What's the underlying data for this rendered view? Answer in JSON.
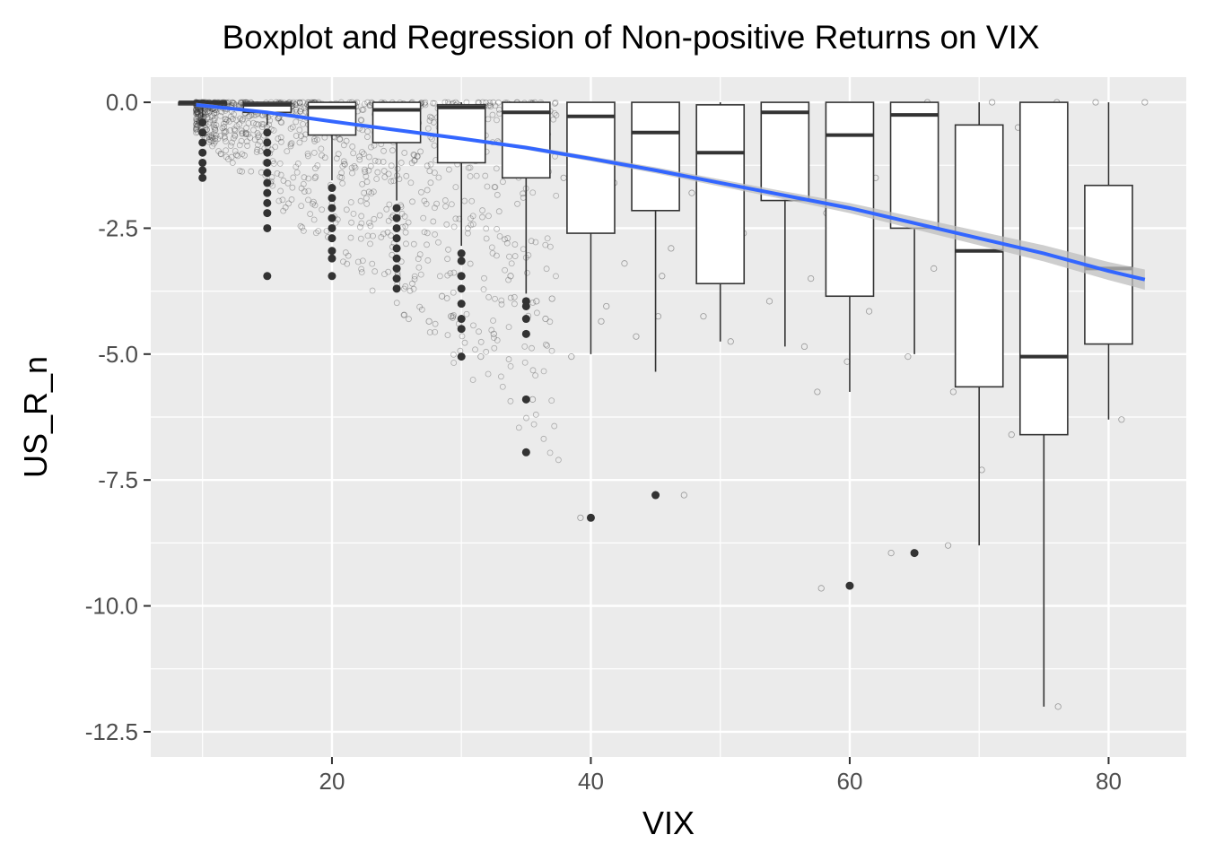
{
  "chart_data": {
    "type": "boxplot",
    "title": "Boxplot and Regression of Non-positive Returns on VIX",
    "xlabel": "VIX",
    "ylabel": "US_R_n",
    "xlim": [
      6,
      86
    ],
    "ylim": [
      -13.0,
      0.5
    ],
    "x_ticks": [
      20,
      40,
      60,
      80
    ],
    "y_ticks": [
      0.0,
      -2.5,
      -5.0,
      -7.5,
      -10.0,
      -12.5
    ],
    "y_tick_labels": [
      "0.0",
      "-2.5",
      "-5.0",
      "-7.5",
      "-10.0",
      "-12.5"
    ],
    "grid": true,
    "legend": "none",
    "colors": {
      "panel": "#ebebeb",
      "grid": "#ffffff",
      "box_fill": "#ffffff",
      "box_line": "#333333",
      "regression": "#3366ff",
      "confidence_band": "#bdbdbd",
      "points": "#333333"
    },
    "boxes": [
      {
        "x": 10,
        "low": -0.3,
        "q1": -0.05,
        "median": 0.0,
        "q3": 0.0,
        "high": 0.0,
        "outliers": [
          -0.4,
          -0.6,
          -0.8,
          -1.0,
          -1.2,
          -1.35,
          -1.5
        ]
      },
      {
        "x": 15,
        "low": -0.45,
        "q1": -0.2,
        "median": -0.05,
        "q3": 0.0,
        "high": 0.0,
        "outliers": [
          -0.6,
          -0.8,
          -1.0,
          -1.2,
          -1.4,
          -1.6,
          -1.8,
          -2.0,
          -2.2,
          -2.5,
          -3.45
        ]
      },
      {
        "x": 20,
        "low": -1.55,
        "q1": -0.65,
        "median": -0.1,
        "q3": 0.0,
        "high": 0.0,
        "outliers": [
          -1.7,
          -1.9,
          -2.1,
          -2.3,
          -2.5,
          -2.7,
          -2.95,
          -3.1,
          -3.45
        ]
      },
      {
        "x": 25,
        "low": -1.95,
        "q1": -0.8,
        "median": -0.15,
        "q3": 0.0,
        "high": 0.0,
        "outliers": [
          -2.1,
          -2.3,
          -2.5,
          -2.7,
          -2.9,
          -3.1,
          -3.3,
          -3.5,
          -3.7
        ]
      },
      {
        "x": 30,
        "low": -2.85,
        "q1": -1.2,
        "median": -0.1,
        "q3": -0.05,
        "high": 0.0,
        "outliers": [
          -3.0,
          -3.15,
          -3.45,
          -3.7,
          -4.0,
          -4.3,
          -4.5,
          -5.05
        ]
      },
      {
        "x": 35,
        "low": -3.8,
        "q1": -1.5,
        "median": -0.2,
        "q3": 0.0,
        "high": 0.0,
        "outliers": [
          -3.95,
          -4.05,
          -4.3,
          -4.6,
          -5.9,
          -6.95
        ]
      },
      {
        "x": 40,
        "low": -5.0,
        "q1": -2.6,
        "median": -0.28,
        "q3": 0.0,
        "high": 0.0,
        "outliers": [
          -8.25
        ]
      },
      {
        "x": 45,
        "low": -5.35,
        "q1": -2.15,
        "median": -0.6,
        "q3": 0.0,
        "high": 0.0,
        "outliers": [
          -7.8
        ]
      },
      {
        "x": 50,
        "low": -4.75,
        "q1": -3.6,
        "median": -1.0,
        "q3": -0.05,
        "high": 0.0,
        "outliers": []
      },
      {
        "x": 55,
        "low": -4.85,
        "q1": -1.95,
        "median": -0.2,
        "q3": 0.0,
        "high": 0.0,
        "outliers": []
      },
      {
        "x": 60,
        "low": -5.75,
        "q1": -3.85,
        "median": -0.65,
        "q3": 0.0,
        "high": 0.0,
        "outliers": [
          -9.6
        ]
      },
      {
        "x": 65,
        "low": -5.0,
        "q1": -2.5,
        "median": -0.25,
        "q3": 0.0,
        "high": 0.0,
        "outliers": [
          -8.95
        ]
      },
      {
        "x": 70,
        "low": -8.8,
        "q1": -5.65,
        "median": -2.95,
        "q3": -0.45,
        "high": 0.0,
        "outliers": []
      },
      {
        "x": 75,
        "low": -12.0,
        "q1": -6.6,
        "median": -5.05,
        "q3": 0.0,
        "high": 0.0,
        "outliers": []
      },
      {
        "x": 80,
        "low": -6.3,
        "q1": -4.8,
        "median": -3.3,
        "q3": -1.65,
        "high": 0.0,
        "outliers": []
      }
    ],
    "regression": {
      "x": [
        9.5,
        15,
        20,
        25,
        30,
        35,
        40,
        45,
        50,
        55,
        60,
        65,
        70,
        75,
        80,
        82.8
      ],
      "y": [
        -0.05,
        -0.2,
        -0.38,
        -0.55,
        -0.72,
        -0.9,
        -1.12,
        -1.35,
        -1.6,
        -1.85,
        -2.1,
        -2.4,
        -2.7,
        -3.0,
        -3.35,
        -3.52
      ],
      "band_halfwidth": [
        0.04,
        0.03,
        0.03,
        0.03,
        0.03,
        0.04,
        0.05,
        0.06,
        0.07,
        0.08,
        0.1,
        0.12,
        0.14,
        0.16,
        0.18,
        0.2
      ]
    },
    "scatter_jitter": [
      [
        9.5,
        0.0
      ],
      [
        66.0,
        0.0
      ],
      [
        64.5,
        -5.05
      ],
      [
        63.2,
        -8.95
      ],
      [
        67.6,
        -8.8
      ],
      [
        57.8,
        -9.65
      ],
      [
        48.7,
        -4.25
      ],
      [
        50.8,
        -4.75
      ],
      [
        53.8,
        -3.95
      ],
      [
        56.5,
        -4.85
      ],
      [
        57.0,
        -3.5
      ],
      [
        57.5,
        -5.75
      ],
      [
        59.8,
        -5.15
      ],
      [
        61.5,
        -4.15
      ],
      [
        43.5,
        -4.65
      ],
      [
        45.2,
        -4.25
      ],
      [
        45.5,
        -3.45
      ],
      [
        46.2,
        -2.9
      ],
      [
        47.2,
        -7.8
      ],
      [
        39.2,
        -8.25
      ],
      [
        38.5,
        -5.05
      ],
      [
        40.8,
        -4.35
      ],
      [
        41.2,
        -4.05
      ],
      [
        35.5,
        -5.9
      ],
      [
        35.8,
        -3.95
      ],
      [
        36.5,
        -4.3
      ],
      [
        37.0,
        -3.9
      ],
      [
        31.5,
        -5.05
      ],
      [
        32.5,
        -4.6
      ],
      [
        33.8,
        -3.45
      ],
      [
        27.5,
        -4.35
      ],
      [
        28.5,
        -3.85
      ],
      [
        29.2,
        -4.25
      ],
      [
        69.5,
        -5.05
      ],
      [
        68.0,
        -5.75
      ],
      [
        70.2,
        -7.3
      ],
      [
        74.0,
        -5.05
      ],
      [
        72.5,
        -6.6
      ],
      [
        76.1,
        -12.0
      ],
      [
        79.0,
        0.0
      ],
      [
        81.0,
        -6.3
      ],
      [
        82.8,
        0.0
      ],
      [
        71.0,
        0.0
      ],
      [
        73.0,
        -0.5
      ],
      [
        76.0,
        0.0
      ],
      [
        68.5,
        -1.2
      ],
      [
        66.5,
        -3.3
      ],
      [
        62.0,
        -1.5
      ],
      [
        58.2,
        -2.2
      ],
      [
        54.0,
        -1.0
      ],
      [
        51.8,
        -2.6
      ],
      [
        47.8,
        -1.8
      ],
      [
        44.0,
        -0.8
      ],
      [
        42.6,
        -3.2
      ],
      [
        41.8,
        -1.6
      ],
      [
        39.5,
        -2.2
      ],
      [
        37.9,
        -1.5
      ]
    ]
  }
}
